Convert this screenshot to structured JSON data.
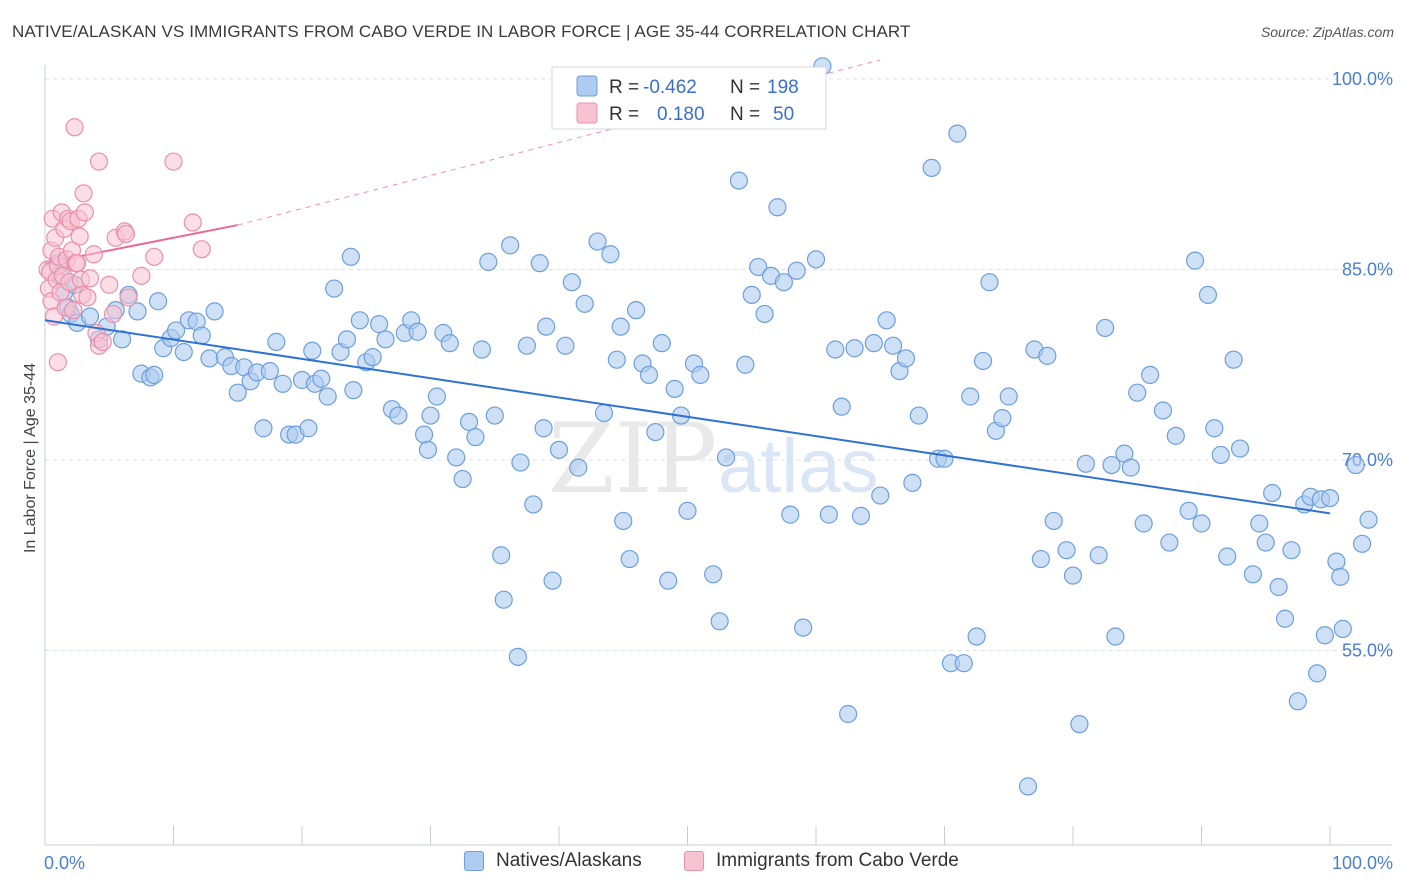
{
  "title": "NATIVE/ALASKAN VS IMMIGRANTS FROM CABO VERDE IN LABOR FORCE | AGE 35-44 CORRELATION CHART",
  "source": "Source: ZipAtlas.com",
  "watermark": {
    "zip": "ZIP",
    "atlas": "atlas"
  },
  "colors": {
    "blue_fill": "#aecbf0",
    "blue_stroke": "#6e9fdc",
    "blue_line": "#2f73d0",
    "pink_fill": "#f7c2d2",
    "pink_stroke": "#ec8fab",
    "pink_line": "#e96b94",
    "axis_text": "#4a7fd0",
    "grid": "#dde3ea"
  },
  "legend_top": {
    "rows": [
      {
        "r_label": "R =",
        "r_value": "-0.462",
        "n_label": "N =",
        "n_value": "198",
        "series": "blue"
      },
      {
        "r_label": "R =",
        "r_value": "0.180",
        "n_label": "N =",
        "n_value": "50",
        "series": "pink"
      }
    ]
  },
  "legend_bottom": {
    "items": [
      {
        "label": "Natives/Alaskans",
        "series": "blue"
      },
      {
        "label": "Immigrants from Cabo Verde",
        "series": "pink"
      }
    ]
  },
  "chart_data": {
    "type": "scatter",
    "title": "NATIVE/ALASKAN VS IMMIGRANTS FROM CABO VERDE IN LABOR FORCE | AGE 35-44 CORRELATION CHART",
    "xlabel": "",
    "ylabel": "In Labor Force | Age 35-44",
    "xlim": [
      0,
      100
    ],
    "ylim": [
      39.5,
      101.5
    ],
    "x_tick_labels": [
      "0.0%",
      "100.0%"
    ],
    "y_tick_labels": [
      {
        "value": 100,
        "label": "100.0%"
      },
      {
        "value": 85,
        "label": "85.0%"
      },
      {
        "value": 70,
        "label": "70.0%"
      },
      {
        "value": 55,
        "label": "55.0%"
      }
    ],
    "grid": true,
    "series": [
      {
        "name": "Natives/Alaskans",
        "R": -0.462,
        "N": 198,
        "trend": {
          "x": [
            0,
            100
          ],
          "y": [
            81.0,
            65.8
          ]
        },
        "points": [
          [
            1.0,
            85.5
          ],
          [
            1.2,
            84.5
          ],
          [
            1.5,
            83.2
          ],
          [
            1.8,
            82.0
          ],
          [
            2.0,
            81.5
          ],
          [
            2.3,
            83.8
          ],
          [
            2.5,
            80.8
          ],
          [
            3.5,
            81.3
          ],
          [
            4.2,
            79.5
          ],
          [
            4.8,
            80.5
          ],
          [
            5.5,
            81.8
          ],
          [
            6.0,
            79.5
          ],
          [
            6.5,
            83.0
          ],
          [
            7.5,
            76.8
          ],
          [
            7.2,
            81.7
          ],
          [
            8.2,
            76.5
          ],
          [
            8.5,
            76.7
          ],
          [
            8.8,
            82.5
          ],
          [
            9.2,
            78.8
          ],
          [
            9.8,
            79.6
          ],
          [
            10.2,
            80.2
          ],
          [
            10.8,
            78.5
          ],
          [
            11.2,
            81.0
          ],
          [
            11.8,
            80.9
          ],
          [
            12.2,
            79.8
          ],
          [
            12.8,
            78.0
          ],
          [
            13.2,
            81.7
          ],
          [
            14.0,
            78.1
          ],
          [
            14.5,
            77.4
          ],
          [
            15.0,
            75.3
          ],
          [
            15.5,
            77.3
          ],
          [
            16.0,
            76.2
          ],
          [
            16.5,
            76.9
          ],
          [
            17.0,
            72.5
          ],
          [
            17.5,
            77.0
          ],
          [
            18.0,
            79.3
          ],
          [
            18.5,
            76.0
          ],
          [
            19.0,
            72.0
          ],
          [
            19.5,
            72.0
          ],
          [
            20.0,
            76.3
          ],
          [
            20.5,
            72.5
          ],
          [
            21.0,
            76.0
          ],
          [
            21.5,
            76.4
          ],
          [
            22.0,
            75.0
          ],
          [
            22.5,
            83.5
          ],
          [
            23.0,
            78.5
          ],
          [
            23.5,
            79.5
          ],
          [
            24.0,
            75.5
          ],
          [
            24.5,
            81.0
          ],
          [
            25.0,
            77.7
          ],
          [
            25.5,
            78.1
          ],
          [
            26.0,
            80.7
          ],
          [
            26.5,
            79.5
          ],
          [
            27.0,
            74.0
          ],
          [
            27.5,
            73.5
          ],
          [
            28.0,
            80.0
          ],
          [
            28.5,
            81.0
          ],
          [
            29.0,
            80.1
          ],
          [
            29.5,
            72.0
          ],
          [
            29.8,
            70.8
          ],
          [
            30.0,
            73.5
          ],
          [
            30.5,
            75.0
          ],
          [
            31.0,
            80.0
          ],
          [
            31.5,
            79.2
          ],
          [
            32.0,
            70.2
          ],
          [
            32.5,
            68.5
          ],
          [
            33.0,
            73.0
          ],
          [
            33.5,
            71.8
          ],
          [
            34.0,
            78.7
          ],
          [
            34.5,
            85.6
          ],
          [
            35.0,
            73.5
          ],
          [
            35.5,
            62.5
          ],
          [
            35.7,
            59.0
          ],
          [
            36.2,
            86.9
          ],
          [
            36.8,
            54.5
          ],
          [
            37.0,
            69.8
          ],
          [
            37.5,
            79.0
          ],
          [
            38.0,
            66.5
          ],
          [
            38.5,
            85.5
          ],
          [
            39.0,
            80.5
          ],
          [
            39.5,
            60.5
          ],
          [
            40.0,
            70.8
          ],
          [
            40.5,
            79.0
          ],
          [
            41.0,
            84.0
          ],
          [
            41.5,
            69.4
          ],
          [
            42.0,
            82.3
          ],
          [
            43.0,
            87.2
          ],
          [
            43.5,
            73.7
          ],
          [
            44.0,
            86.2
          ],
          [
            44.5,
            77.9
          ],
          [
            45.0,
            65.2
          ],
          [
            45.5,
            62.2
          ],
          [
            46.0,
            81.8
          ],
          [
            46.5,
            77.6
          ],
          [
            47.0,
            76.7
          ],
          [
            47.5,
            72.2
          ],
          [
            48.0,
            79.2
          ],
          [
            48.5,
            60.5
          ],
          [
            49.0,
            75.6
          ],
          [
            49.5,
            73.5
          ],
          [
            50.0,
            66.0
          ],
          [
            50.5,
            77.6
          ],
          [
            51.0,
            76.7
          ],
          [
            52.0,
            61.0
          ],
          [
            52.5,
            57.3
          ],
          [
            53.0,
            70.2
          ],
          [
            54.0,
            92.0
          ],
          [
            54.5,
            77.5
          ],
          [
            55.0,
            83.0
          ],
          [
            55.5,
            85.2
          ],
          [
            56.0,
            81.5
          ],
          [
            56.5,
            84.5
          ],
          [
            57.0,
            89.9
          ],
          [
            57.5,
            84.0
          ],
          [
            58.0,
            65.7
          ],
          [
            59.0,
            56.8
          ],
          [
            60.0,
            85.8
          ],
          [
            61.0,
            65.7
          ],
          [
            61.5,
            78.7
          ],
          [
            62.0,
            74.2
          ],
          [
            62.5,
            50.0
          ],
          [
            63.0,
            78.8
          ],
          [
            63.5,
            65.6
          ],
          [
            64.5,
            79.2
          ],
          [
            65.0,
            67.2
          ],
          [
            65.5,
            81.0
          ],
          [
            66.0,
            79.0
          ],
          [
            66.5,
            77.0
          ],
          [
            67.0,
            78.0
          ],
          [
            67.5,
            68.2
          ],
          [
            68.0,
            73.5
          ],
          [
            69.0,
            93.0
          ],
          [
            69.5,
            70.1
          ],
          [
            70.0,
            70.1
          ],
          [
            70.5,
            54.0
          ],
          [
            71.0,
            95.7
          ],
          [
            71.5,
            54.0
          ],
          [
            72.0,
            75.0
          ],
          [
            72.5,
            56.1
          ],
          [
            73.0,
            77.8
          ],
          [
            73.5,
            84.0
          ],
          [
            74.0,
            72.3
          ],
          [
            74.5,
            73.3
          ],
          [
            75.0,
            75.0
          ],
          [
            76.5,
            44.3
          ],
          [
            77.0,
            78.7
          ],
          [
            77.5,
            62.2
          ],
          [
            78.0,
            78.2
          ],
          [
            78.5,
            65.2
          ],
          [
            79.5,
            62.9
          ],
          [
            80.0,
            60.9
          ],
          [
            80.5,
            49.2
          ],
          [
            81.0,
            69.7
          ],
          [
            82.0,
            62.5
          ],
          [
            82.5,
            80.4
          ],
          [
            83.0,
            69.6
          ],
          [
            83.3,
            56.1
          ],
          [
            84.0,
            70.5
          ],
          [
            84.5,
            69.4
          ],
          [
            85.0,
            75.3
          ],
          [
            85.5,
            65.0
          ],
          [
            86.0,
            76.7
          ],
          [
            87.0,
            73.9
          ],
          [
            87.5,
            63.5
          ],
          [
            88.0,
            71.9
          ],
          [
            89.0,
            66.0
          ],
          [
            89.5,
            85.7
          ],
          [
            90.0,
            65.0
          ],
          [
            90.5,
            83.0
          ],
          [
            91.0,
            72.5
          ],
          [
            91.5,
            70.4
          ],
          [
            92.0,
            62.4
          ],
          [
            92.5,
            77.9
          ],
          [
            93.0,
            70.9
          ],
          [
            94.0,
            61.0
          ],
          [
            94.5,
            65.0
          ],
          [
            95.0,
            63.5
          ],
          [
            95.5,
            67.4
          ],
          [
            96.0,
            60.0
          ],
          [
            96.5,
            57.5
          ],
          [
            97.0,
            62.9
          ],
          [
            97.5,
            51.0
          ],
          [
            98.0,
            66.5
          ],
          [
            98.5,
            67.1
          ],
          [
            99.0,
            53.2
          ],
          [
            99.3,
            66.9
          ],
          [
            99.6,
            56.2
          ],
          [
            100.0,
            67.0
          ],
          [
            100.5,
            62.0
          ],
          [
            100.8,
            60.8
          ],
          [
            101.0,
            56.7
          ],
          [
            102.0,
            69.6
          ],
          [
            102.5,
            63.4
          ],
          [
            103.0,
            65.3
          ],
          [
            60.5,
            101.0
          ],
          [
            44.8,
            80.5
          ],
          [
            20.8,
            78.6
          ],
          [
            38.8,
            72.5
          ],
          [
            23.8,
            86.0
          ],
          [
            58.5,
            84.9
          ]
        ]
      },
      {
        "name": "Immigrants from Cabo Verde",
        "R": 0.18,
        "N": 50,
        "trend": {
          "x": [
            0,
            15
          ],
          "y": [
            85.5,
            88.5
          ]
        },
        "trend_extended": {
          "x": [
            15,
            65
          ],
          "y": [
            88.5,
            101.5
          ]
        },
        "points": [
          [
            0.2,
            85.0
          ],
          [
            0.3,
            83.5
          ],
          [
            0.4,
            84.8
          ],
          [
            0.5,
            82.5
          ],
          [
            0.5,
            86.5
          ],
          [
            0.6,
            89.0
          ],
          [
            0.7,
            81.3
          ],
          [
            0.8,
            87.5
          ],
          [
            0.9,
            84.2
          ],
          [
            1.0,
            85.3
          ],
          [
            1.0,
            77.7
          ],
          [
            1.1,
            86.0
          ],
          [
            1.2,
            83.2
          ],
          [
            1.3,
            89.5
          ],
          [
            1.4,
            84.5
          ],
          [
            1.5,
            88.2
          ],
          [
            1.6,
            82.0
          ],
          [
            1.7,
            85.8
          ],
          [
            1.8,
            89.0
          ],
          [
            1.9,
            84.0
          ],
          [
            2.0,
            88.8
          ],
          [
            2.1,
            86.5
          ],
          [
            2.2,
            81.8
          ],
          [
            2.3,
            96.2
          ],
          [
            2.4,
            85.5
          ],
          [
            2.5,
            85.5
          ],
          [
            2.6,
            89.0
          ],
          [
            2.7,
            87.6
          ],
          [
            2.8,
            84.2
          ],
          [
            2.9,
            83.0
          ],
          [
            3.0,
            91.0
          ],
          [
            3.1,
            89.5
          ],
          [
            3.3,
            82.8
          ],
          [
            3.5,
            84.3
          ],
          [
            3.8,
            86.2
          ],
          [
            4.0,
            80.0
          ],
          [
            4.2,
            79.0
          ],
          [
            4.5,
            79.3
          ],
          [
            5.0,
            83.8
          ],
          [
            5.3,
            81.5
          ],
          [
            5.5,
            87.5
          ],
          [
            6.2,
            88.0
          ],
          [
            6.3,
            87.8
          ],
          [
            6.5,
            82.8
          ],
          [
            7.5,
            84.5
          ],
          [
            8.5,
            86.0
          ],
          [
            10.0,
            93.5
          ],
          [
            11.5,
            88.7
          ],
          [
            12.2,
            86.6
          ],
          [
            4.2,
            93.5
          ]
        ]
      }
    ]
  }
}
